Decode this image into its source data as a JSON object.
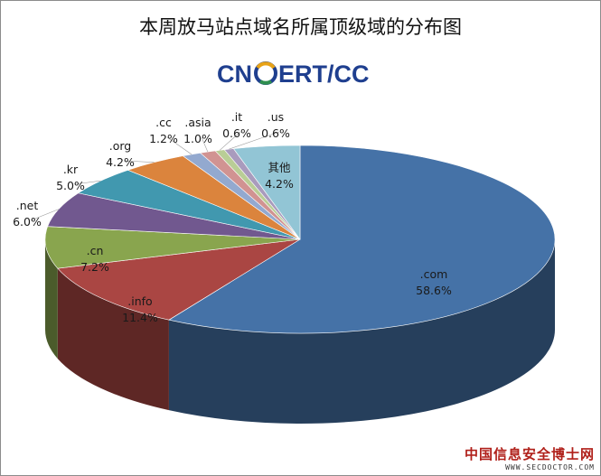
{
  "chart_data": {
    "type": "pie",
    "title": "本周放马站点域名所属顶级域的分布图",
    "slices": [
      {
        "label": ".com",
        "value": 58.6,
        "value_label": "58.6%",
        "color": "#4572a7"
      },
      {
        "label": ".info",
        "value": 11.4,
        "value_label": "11.4%",
        "color": "#aa4643"
      },
      {
        "label": ".cn",
        "value": 7.2,
        "value_label": "7.2%",
        "color": "#89a54e"
      },
      {
        "label": ".net",
        "value": 6.0,
        "value_label": "6.0%",
        "color": "#71588f"
      },
      {
        "label": ".kr",
        "value": 5.0,
        "value_label": "5.0%",
        "color": "#4198af"
      },
      {
        "label": ".org",
        "value": 4.2,
        "value_label": "4.2%",
        "color": "#db843d"
      },
      {
        "label": ".cc",
        "value": 1.2,
        "value_label": "1.2%",
        "color": "#93a9cf"
      },
      {
        "label": ".asia",
        "value": 1.0,
        "value_label": "1.0%",
        "color": "#d19392"
      },
      {
        "label": ".it",
        "value": 0.6,
        "value_label": "0.6%",
        "color": "#b9cd96"
      },
      {
        "label": ".us",
        "value": 0.6,
        "value_label": "0.6%",
        "color": "#a99bbd"
      },
      {
        "label": "其他",
        "value": 4.2,
        "value_label": "4.2%",
        "color": "#92c5d5"
      }
    ]
  },
  "logo": {
    "text_left": "CN",
    "text_right": "ERT/CC",
    "color": "#1f3f8f"
  },
  "watermark": {
    "text_cn": "中国信息安全博士网",
    "text_url": "WWW.SECDOCTOR.COM"
  }
}
